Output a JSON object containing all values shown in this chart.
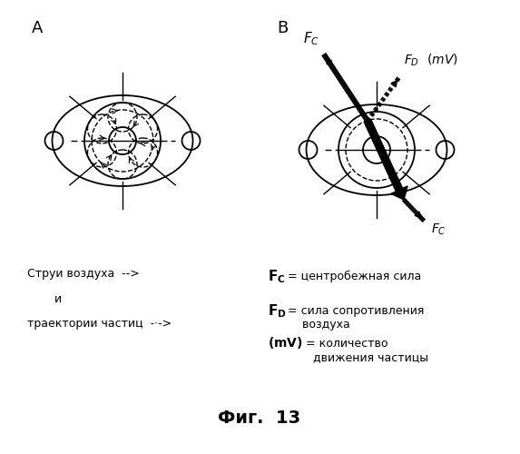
{
  "fig_title": "Фиг.  13",
  "label_A": "А",
  "label_B": "В",
  "background_color": "#ffffff",
  "line_color": "#000000"
}
